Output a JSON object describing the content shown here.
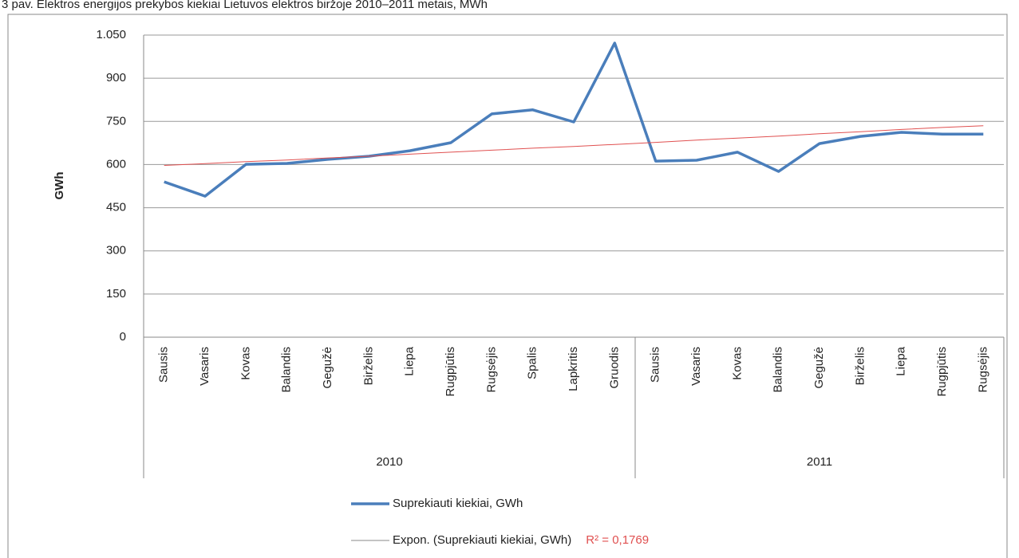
{
  "chart_data": {
    "type": "line",
    "title": "3 pav. Elektros energijos prekybos kiekiai Lietuvos elektros biržoje 2010–2011 metais, MWh",
    "y_label": "GWh",
    "groups": [
      {
        "label": "2010",
        "categories": [
          "Sausis",
          "Vasaris",
          "Kovas",
          "Balandis",
          "Gegužė",
          "Birželis",
          "Liepa",
          "Rugpjūtis",
          "Rugsėjis",
          "Spalis",
          "Lapkritis",
          "Gruodis"
        ]
      },
      {
        "label": "2011",
        "categories": [
          "Sausis",
          "Vasaris",
          "Kovas",
          "Balandis",
          "Gegužė",
          "Birželis",
          "Liepa",
          "Rugpjūtis",
          "Rugsėjis"
        ]
      }
    ],
    "series": [
      {
        "name": "Suprekiauti kiekiai, GWh",
        "color": "#4a7ebb",
        "values": [
          540,
          490,
          601,
          604,
          618,
          629,
          648,
          676,
          776,
          790,
          748,
          1022,
          612,
          615,
          643,
          576,
          673,
          698,
          712,
          706,
          706
        ]
      },
      {
        "name": "Expon. (Suprekiauti kiekiai, GWh)",
        "color": "#e05050",
        "values": [
          597,
          603,
          610,
          616,
          623,
          629,
          636,
          643,
          650,
          657,
          663,
          670,
          677,
          685,
          692,
          699,
          707,
          714,
          722,
          729,
          735
        ],
        "annotation": "R² = 0,1769"
      }
    ],
    "ylim": [
      0,
      1050
    ],
    "yticks": [
      0,
      150,
      300,
      450,
      600,
      750,
      900,
      {
        "value": 1050,
        "label": "1.050"
      }
    ],
    "grid": true
  }
}
